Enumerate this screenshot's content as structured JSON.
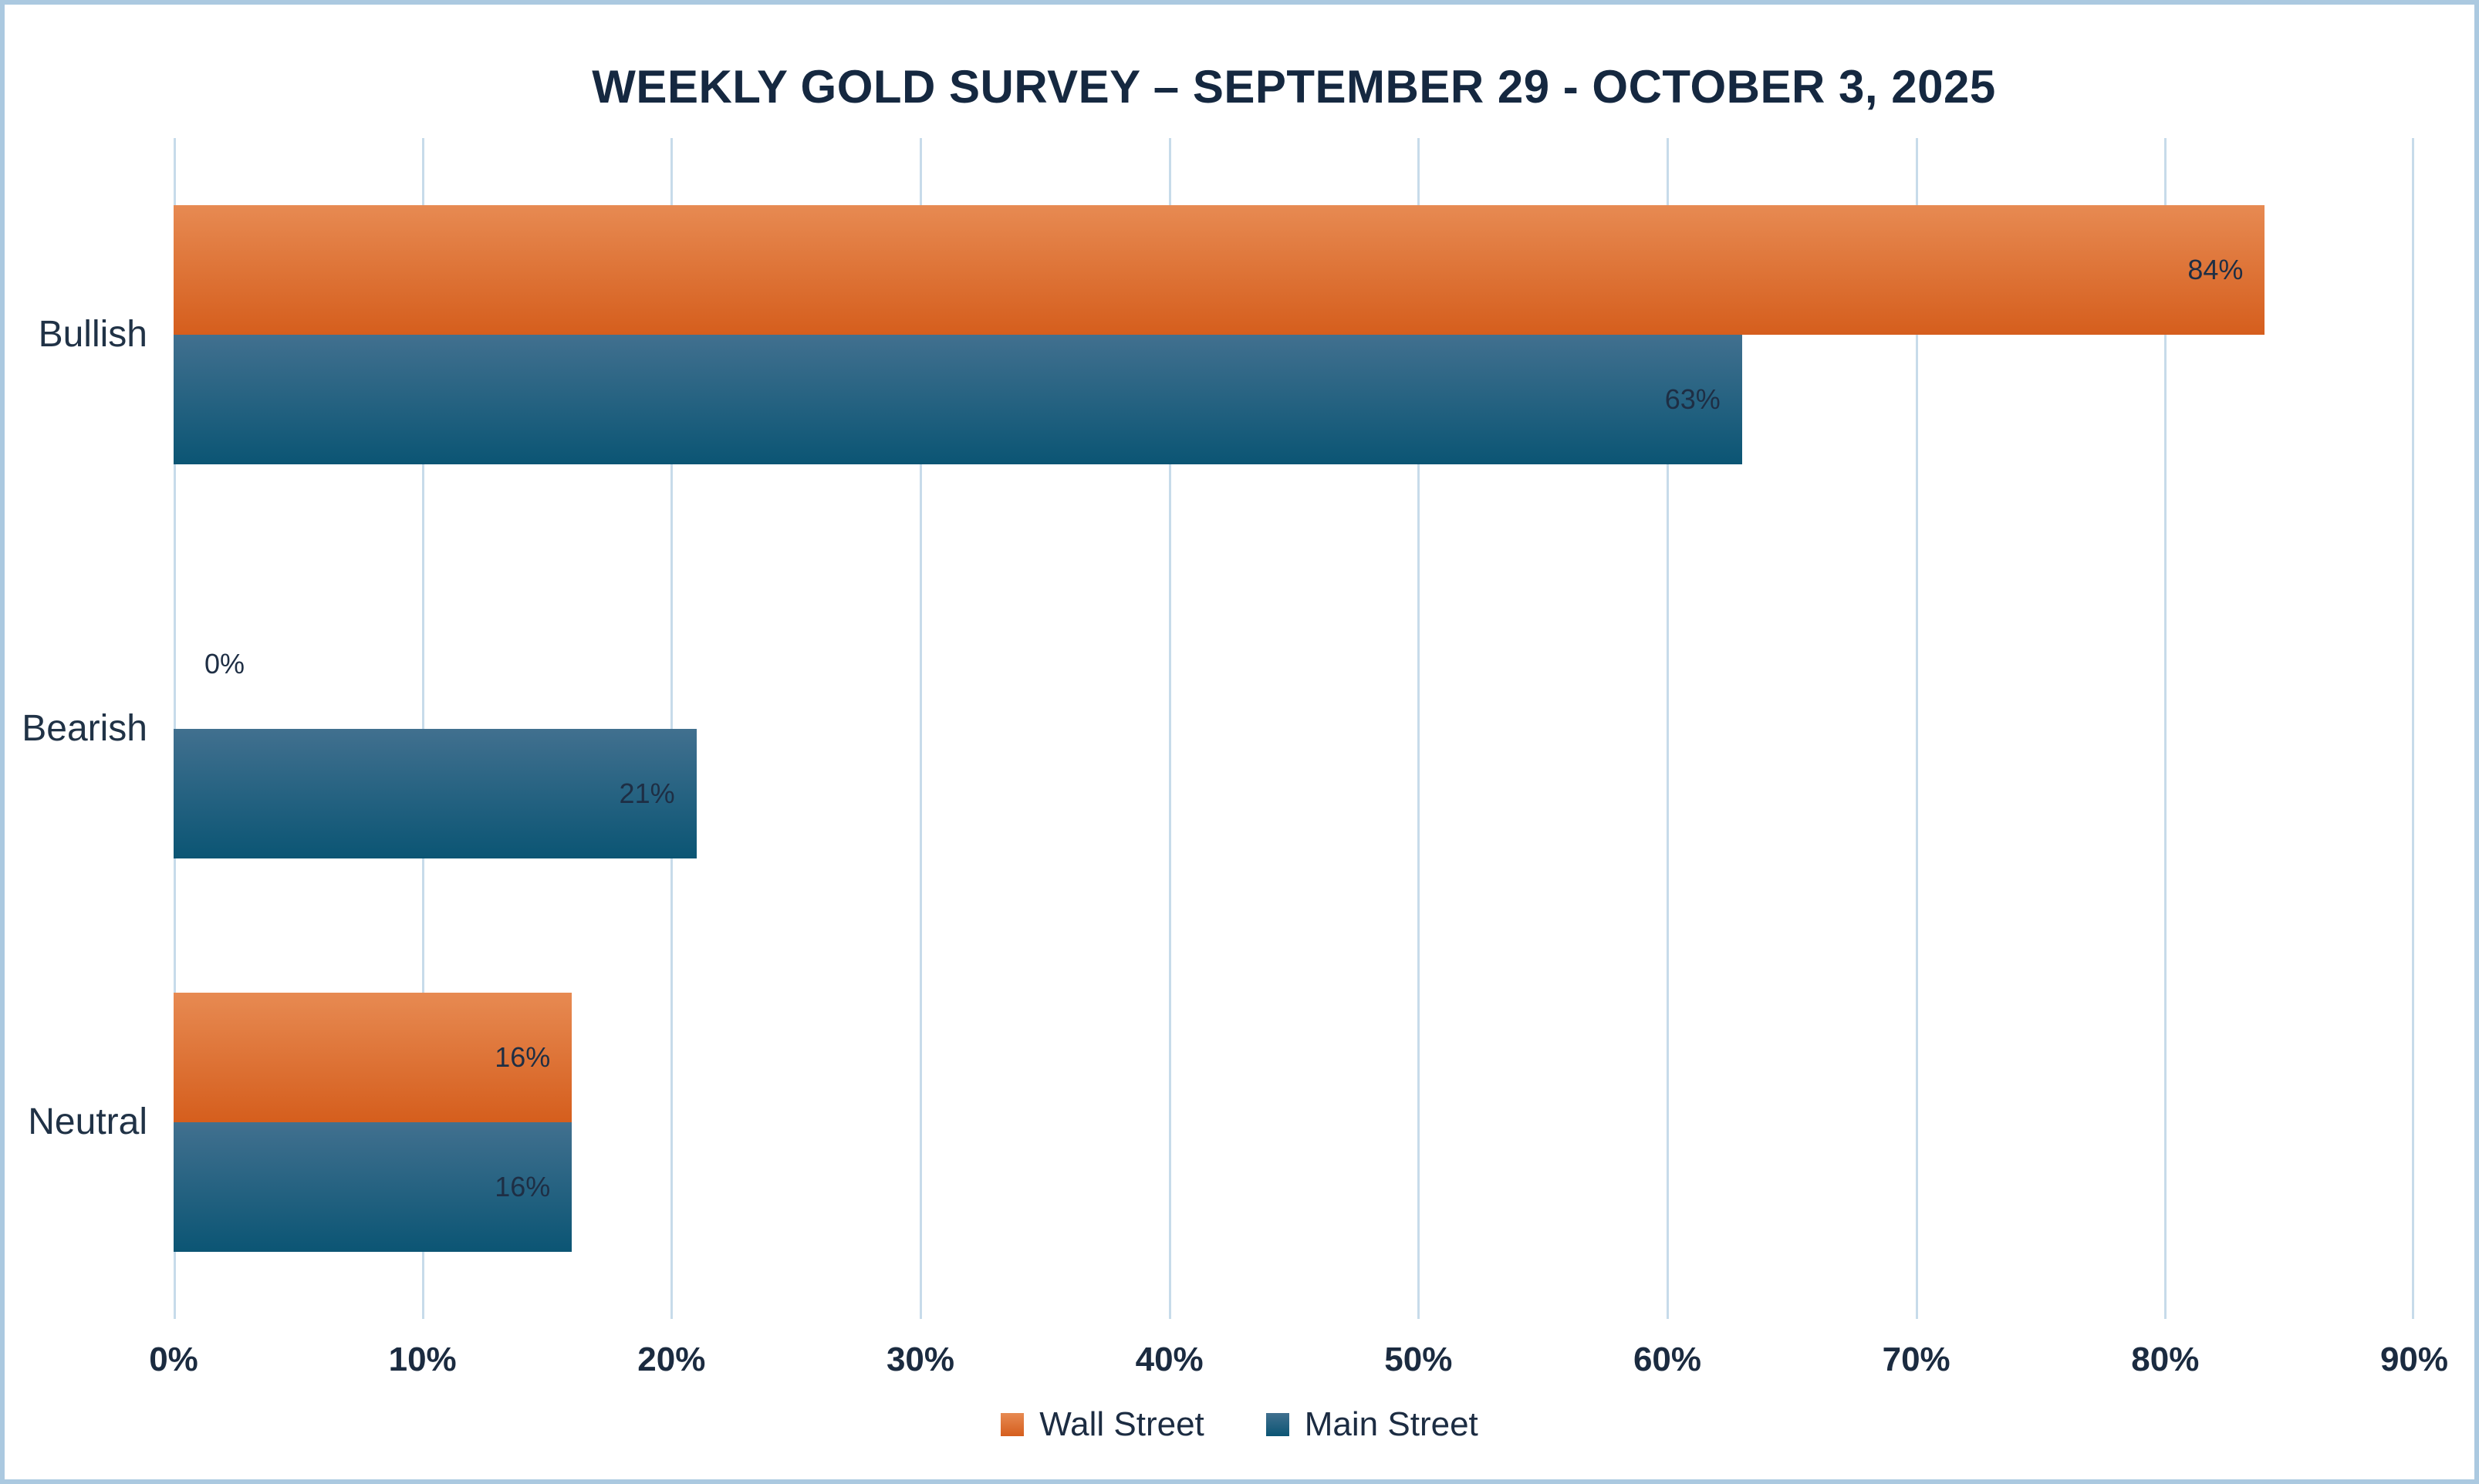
{
  "chart_data": {
    "type": "bar",
    "orientation": "horizontal",
    "title": "WEEKLY GOLD SURVEY – SEPTEMBER 29 - OCTOBER 3, 2025",
    "categories": [
      "Bullish",
      "Bearish",
      "Neutral"
    ],
    "series": [
      {
        "name": "Wall Street",
        "values": [
          84,
          0,
          16
        ],
        "labels": [
          "84%",
          "0%",
          "16%"
        ],
        "color_top": "#E78A52",
        "color_bottom": "#D55E1D"
      },
      {
        "name": "Main Street",
        "values": [
          63,
          21,
          16
        ],
        "labels": [
          "63%",
          "21%",
          "16%"
        ],
        "color_top": "#41708F",
        "color_bottom": "#0B5574"
      }
    ],
    "xlim": [
      0,
      90
    ],
    "xticks": {
      "values": [
        0,
        10,
        20,
        30,
        40,
        50,
        60,
        70,
        80,
        90
      ],
      "labels": [
        "0%",
        "10%",
        "20%",
        "30%",
        "40%",
        "50%",
        "60%",
        "70%",
        "80%",
        "90%"
      ]
    },
    "grid": true,
    "legend_position": "bottom"
  },
  "colors": {
    "background": "#FFFFFF",
    "frame_border": "#ABC9E0",
    "gridline": "#C7DBEA",
    "title_text": "#152840",
    "label_text": "#1E2E44",
    "axis_text": "#1B2B40"
  }
}
